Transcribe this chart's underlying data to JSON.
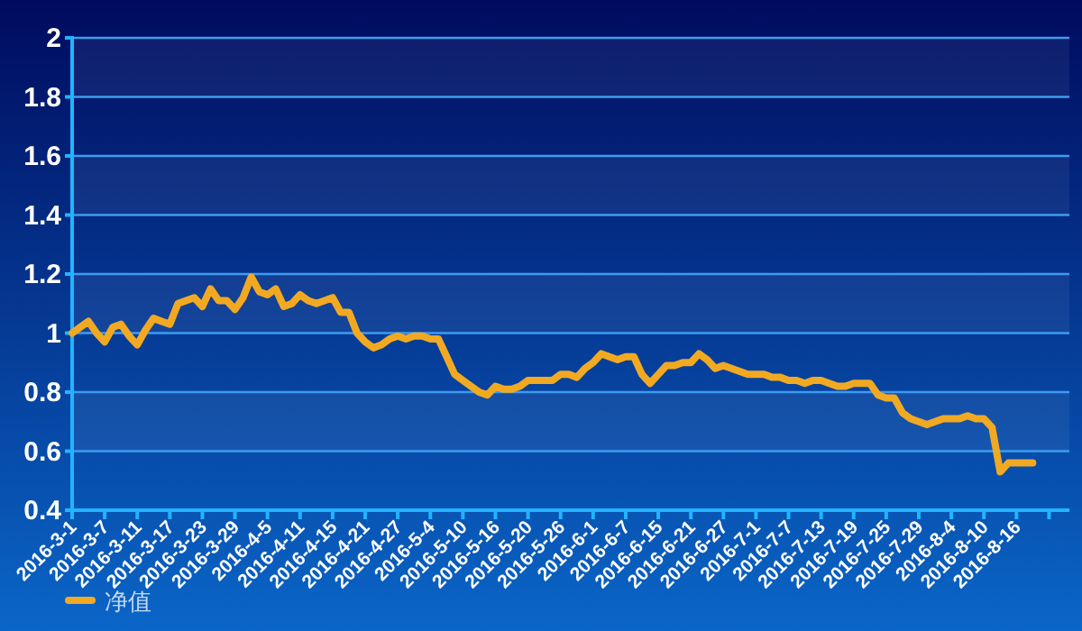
{
  "chart_data": {
    "type": "line",
    "categories": [
      "2016-3-1",
      null,
      null,
      null,
      "2016-3-7",
      null,
      null,
      null,
      "2016-3-11",
      null,
      null,
      null,
      "2016-3-17",
      null,
      null,
      null,
      "2016-3-23",
      null,
      null,
      null,
      "2016-3-29",
      null,
      null,
      null,
      "2016-4-5",
      null,
      null,
      null,
      "2016-4-11",
      null,
      null,
      null,
      "2016-4-15",
      null,
      null,
      null,
      "2016-4-21",
      null,
      null,
      null,
      "2016-4-27",
      null,
      null,
      null,
      "2016-5-4",
      null,
      null,
      null,
      "2016-5-10",
      null,
      null,
      null,
      "2016-5-16",
      null,
      null,
      null,
      "2016-5-20",
      null,
      null,
      null,
      "2016-5-26",
      null,
      null,
      null,
      "2016-6-1",
      null,
      null,
      null,
      "2016-6-7",
      null,
      null,
      null,
      "2016-6-15",
      null,
      null,
      null,
      "2016-6-21",
      null,
      null,
      null,
      "2016-6-27",
      null,
      null,
      null,
      "2016-7-1",
      null,
      null,
      null,
      "2016-7-7",
      null,
      null,
      null,
      "2016-7-13",
      null,
      null,
      null,
      "2016-7-19",
      null,
      null,
      null,
      "2016-7-25",
      null,
      null,
      null,
      "2016-7-29",
      null,
      null,
      null,
      "2016-8-4",
      null,
      null,
      null,
      "2016-8-10",
      null,
      null,
      null,
      "2016-8-16",
      null,
      null,
      null,
      null
    ],
    "series": [
      {
        "name": "净值",
        "color": "#f2a922",
        "values": [
          1.0,
          1.02,
          1.04,
          1.0,
          0.97,
          1.02,
          1.03,
          0.99,
          0.96,
          1.01,
          1.05,
          1.04,
          1.03,
          1.1,
          1.11,
          1.12,
          1.09,
          1.15,
          1.11,
          1.11,
          1.08,
          1.12,
          1.19,
          1.14,
          1.13,
          1.15,
          1.09,
          1.1,
          1.13,
          1.11,
          1.1,
          1.11,
          1.12,
          1.07,
          1.07,
          1.0,
          0.97,
          0.95,
          0.96,
          0.98,
          0.99,
          0.98,
          0.99,
          0.99,
          0.98,
          0.98,
          0.92,
          0.86,
          0.84,
          0.82,
          0.8,
          0.79,
          0.82,
          0.81,
          0.81,
          0.82,
          0.84,
          0.84,
          0.84,
          0.84,
          0.86,
          0.86,
          0.85,
          0.88,
          0.9,
          0.93,
          0.92,
          0.91,
          0.92,
          0.92,
          0.86,
          0.83,
          0.86,
          0.89,
          0.89,
          0.9,
          0.9,
          0.93,
          0.91,
          0.88,
          0.89,
          0.88,
          0.87,
          0.86,
          0.86,
          0.86,
          0.85,
          0.85,
          0.84,
          0.84,
          0.83,
          0.84,
          0.84,
          0.83,
          0.82,
          0.82,
          0.83,
          0.83,
          0.83,
          0.79,
          0.78,
          0.78,
          0.73,
          0.71,
          0.7,
          0.69,
          0.7,
          0.71,
          0.71,
          0.71,
          0.72,
          0.71,
          0.71,
          0.68,
          0.53,
          0.56,
          0.56,
          0.56,
          0.56,
          null,
          null
        ]
      }
    ],
    "ylim": [
      0.4,
      2
    ],
    "yticks": [
      0.4,
      0.6,
      0.8,
      1,
      1.2,
      1.4,
      1.6,
      1.8,
      2
    ],
    "grid": "y",
    "legend": "bottom left",
    "marker": "none",
    "line_style": "solid"
  }
}
